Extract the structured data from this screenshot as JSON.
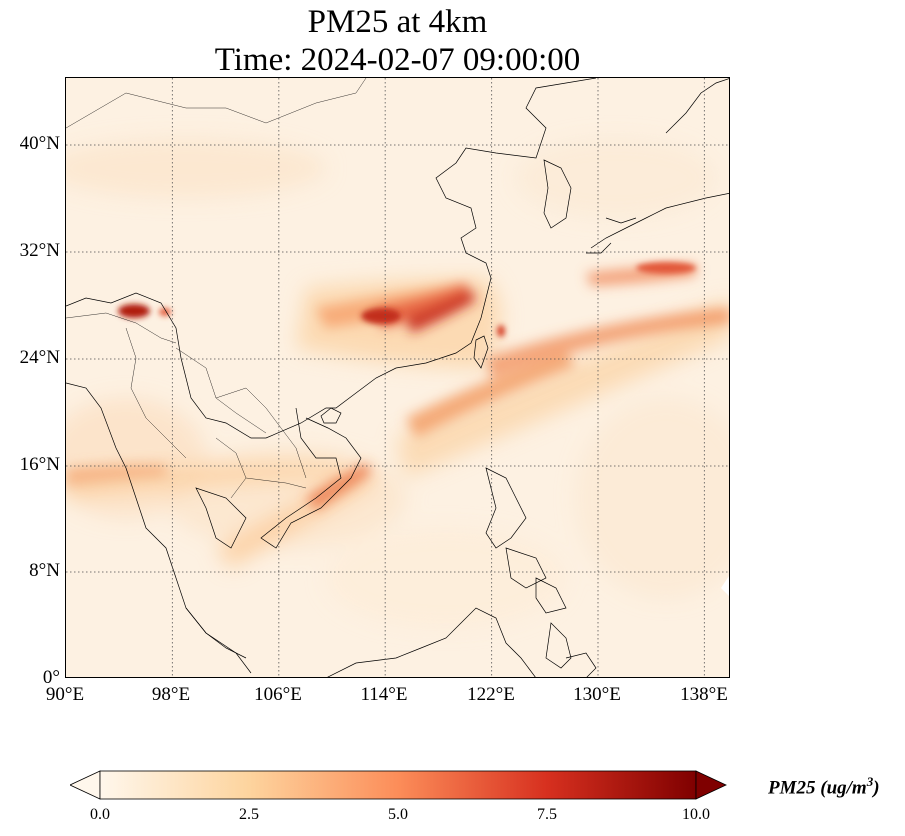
{
  "title": {
    "line1": "PM25 at 4km",
    "line2": "Time: 2024-02-07 09:00:00"
  },
  "map": {
    "lon_range": [
      90,
      140
    ],
    "lat_range": [
      0,
      45
    ],
    "gridlines": "dotted",
    "colormap": "OrRd",
    "lat_labels": [
      "40°N",
      "32°N",
      "24°N",
      "16°N",
      "8°N",
      "0°"
    ],
    "lon_labels": [
      "90°E",
      "98°E",
      "106°E",
      "114°E",
      "122°E",
      "130°E",
      "138°E"
    ]
  },
  "colorbar": {
    "ticks": [
      "0.0",
      "2.5",
      "5.0",
      "7.5",
      "10.0"
    ],
    "range": [
      0,
      10
    ],
    "extend": "both",
    "label_main": "PM25 (ug/m",
    "label_sup": "3",
    "label_end": ")",
    "colors": [
      "#fff7ec",
      "#fdd49e",
      "#fc8d59",
      "#d7301f",
      "#7f0000"
    ]
  }
}
